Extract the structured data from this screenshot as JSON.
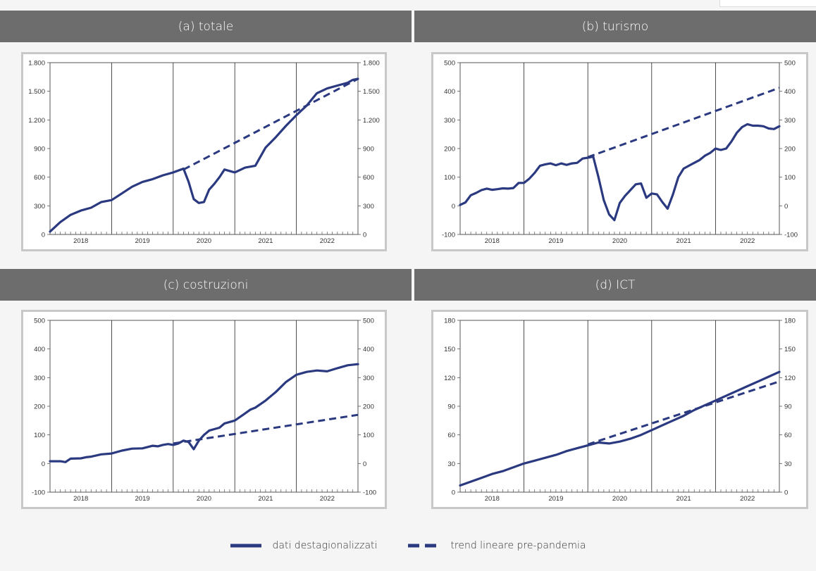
{
  "colors": {
    "series": "#2b3a80",
    "header": "#6d6d6d"
  },
  "legend": {
    "actual_label": "dati destagionalizzati",
    "trend_label": "trend lineare pre-pandemia"
  },
  "chart_data": [
    {
      "type": "line",
      "title": "(a) totale",
      "ylim": [
        0,
        1800
      ],
      "yticks": [
        0,
        300,
        600,
        900,
        1200,
        1500,
        1800
      ],
      "ytick_labels": [
        "0",
        "300",
        "600",
        "900",
        "1.200",
        "1.500",
        "1.800"
      ],
      "xlim": [
        0,
        60
      ],
      "year_labels": [
        "2018",
        "2019",
        "2020",
        "2021",
        "2022"
      ],
      "series": [
        {
          "style": "solid",
          "x": [
            0,
            2,
            4,
            6,
            8,
            10,
            12,
            14,
            16,
            18,
            20,
            22,
            24,
            26,
            27,
            28,
            29,
            30,
            31,
            32,
            33,
            34,
            36,
            38,
            40,
            42,
            44,
            46,
            48,
            50,
            52,
            54,
            56,
            58,
            59,
            60
          ],
          "values": [
            30,
            130,
            205,
            250,
            280,
            340,
            360,
            430,
            500,
            550,
            580,
            620,
            650,
            690,
            550,
            370,
            330,
            340,
            470,
            530,
            600,
            680,
            650,
            700,
            720,
            910,
            1020,
            1140,
            1250,
            1350,
            1480,
            1530,
            1560,
            1590,
            1620,
            1630
          ]
        },
        {
          "style": "dashed",
          "x": [
            26,
            60
          ],
          "values": [
            680,
            1630
          ]
        }
      ]
    },
    {
      "type": "line",
      "title": "(b) turismo",
      "ylim": [
        -100,
        500
      ],
      "yticks": [
        -100,
        0,
        100,
        200,
        300,
        400,
        500
      ],
      "ytick_labels": [
        "-100",
        "0",
        "100",
        "200",
        "300",
        "400",
        "500"
      ],
      "xlim": [
        0,
        60
      ],
      "year_labels": [
        "2018",
        "2019",
        "2020",
        "2021",
        "2022"
      ],
      "series": [
        {
          "style": "solid",
          "x": [
            0,
            1,
            2,
            3,
            4,
            5,
            6,
            7,
            8,
            9,
            10,
            11,
            12,
            13,
            14,
            15,
            16,
            17,
            18,
            19,
            20,
            21,
            22,
            23,
            24,
            25,
            26,
            27,
            28,
            29,
            30,
            31,
            32,
            33,
            34,
            35,
            36,
            37,
            38,
            39,
            40,
            41,
            42,
            43,
            44,
            45,
            46,
            47,
            48,
            49,
            50,
            51,
            52,
            53,
            54,
            55,
            56,
            57,
            58,
            59,
            60
          ],
          "values": [
            3,
            12,
            37,
            45,
            55,
            60,
            56,
            58,
            61,
            60,
            62,
            80,
            80,
            95,
            115,
            140,
            145,
            148,
            142,
            148,
            143,
            148,
            150,
            165,
            168,
            172,
            100,
            20,
            -30,
            -50,
            10,
            35,
            55,
            75,
            78,
            28,
            43,
            40,
            13,
            -10,
            40,
            100,
            130,
            140,
            150,
            160,
            175,
            185,
            200,
            195,
            200,
            225,
            255,
            275,
            285,
            280,
            280,
            278,
            270,
            268,
            278
          ]
        },
        {
          "style": "dashed",
          "x": [
            24,
            60
          ],
          "values": [
            170,
            412
          ]
        }
      ]
    },
    {
      "type": "line",
      "title": "(c) costruzioni",
      "ylim": [
        -100,
        500
      ],
      "yticks": [
        -100,
        0,
        100,
        200,
        300,
        400,
        500
      ],
      "ytick_labels": [
        "-100",
        "0",
        "100",
        "200",
        "300",
        "400",
        "500"
      ],
      "xlim": [
        0,
        60
      ],
      "year_labels": [
        "2018",
        "2019",
        "2020",
        "2021",
        "2022"
      ],
      "series": [
        {
          "style": "solid",
          "x": [
            0,
            2,
            3,
            4,
            6,
            7,
            8,
            10,
            12,
            14,
            16,
            18,
            20,
            21,
            22,
            23,
            24,
            25,
            26,
            27,
            28,
            29,
            30,
            31,
            32,
            33,
            34,
            36,
            38,
            39,
            40,
            42,
            44,
            46,
            48,
            50,
            52,
            54,
            56,
            58,
            60
          ],
          "values": [
            8,
            8,
            5,
            17,
            18,
            22,
            24,
            32,
            35,
            45,
            52,
            53,
            62,
            60,
            65,
            68,
            65,
            70,
            80,
            75,
            50,
            80,
            100,
            115,
            120,
            125,
            140,
            150,
            175,
            188,
            195,
            220,
            250,
            285,
            310,
            320,
            325,
            322,
            333,
            343,
            347
          ]
        },
        {
          "style": "dashed",
          "x": [
            24,
            60
          ],
          "values": [
            70,
            170
          ]
        }
      ]
    },
    {
      "type": "line",
      "title": "(d) ICT",
      "ylim": [
        0,
        180
      ],
      "yticks": [
        0,
        30,
        60,
        90,
        120,
        150,
        180
      ],
      "ytick_labels": [
        "0",
        "30",
        "60",
        "90",
        "120",
        "150",
        "180"
      ],
      "xlim": [
        0,
        60
      ],
      "year_labels": [
        "2018",
        "2019",
        "2020",
        "2021",
        "2022"
      ],
      "series": [
        {
          "style": "solid",
          "x": [
            0,
            2,
            4,
            6,
            8,
            10,
            12,
            14,
            16,
            18,
            20,
            22,
            24,
            26,
            28,
            30,
            32,
            34,
            36,
            38,
            40,
            42,
            44,
            46,
            48,
            50,
            52,
            54,
            56,
            58,
            60
          ],
          "values": [
            7,
            11,
            15,
            19,
            22,
            26,
            30,
            33,
            36,
            39,
            43,
            46,
            49,
            52,
            51,
            53,
            56,
            60,
            65,
            70,
            75,
            80,
            86,
            91,
            96,
            101,
            106,
            111,
            116,
            121,
            126
          ]
        },
        {
          "style": "dashed",
          "x": [
            24,
            60
          ],
          "values": [
            50,
            116
          ]
        }
      ]
    }
  ]
}
